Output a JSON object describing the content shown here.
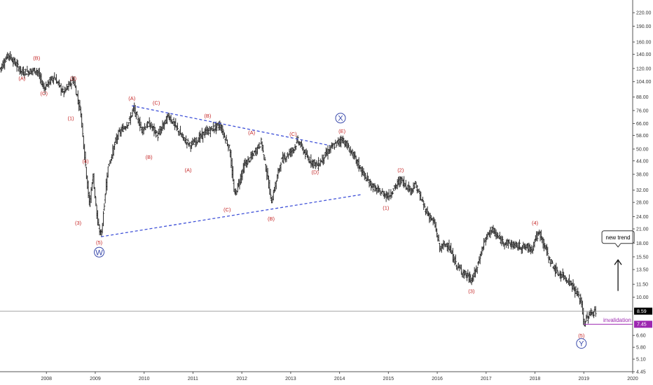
{
  "chart_data": {
    "type": "ohlc",
    "title": "",
    "xlabel": "",
    "ylabel": "",
    "y_scale": "log",
    "ylim": [
      4.45,
      245
    ],
    "xlim": [
      2007.05,
      2020.0
    ],
    "x_ticks": [
      "2008",
      "2009",
      "2010",
      "2011",
      "2012",
      "2013",
      "2014",
      "2015",
      "2016",
      "2017",
      "2018",
      "2019",
      "2020"
    ],
    "y_ticks": [
      "220.00",
      "190.00",
      "160.00",
      "140.00",
      "120.00",
      "104.00",
      "88.00",
      "76.00",
      "66.00",
      "58.00",
      "50.00",
      "44.00",
      "38.00",
      "32.00",
      "28.00",
      "24.00",
      "21.00",
      "18.00",
      "15.50",
      "13.50",
      "11.50",
      "10.00",
      "8.80",
      "7.45",
      "6.60",
      "5.80",
      "5.10",
      "4.45"
    ],
    "grid": false,
    "price_path": [
      {
        "x": 2007.05,
        "y": 120
      },
      {
        "x": 2007.22,
        "y": 140
      },
      {
        "x": 2007.5,
        "y": 115
      },
      {
        "x": 2007.8,
        "y": 118
      },
      {
        "x": 2007.95,
        "y": 97
      },
      {
        "x": 2008.15,
        "y": 110
      },
      {
        "x": 2008.35,
        "y": 92
      },
      {
        "x": 2008.55,
        "y": 107
      },
      {
        "x": 2008.7,
        "y": 75
      },
      {
        "x": 2008.8,
        "y": 42
      },
      {
        "x": 2008.88,
        "y": 27
      },
      {
        "x": 2008.95,
        "y": 38
      },
      {
        "x": 2009.05,
        "y": 22
      },
      {
        "x": 2009.12,
        "y": 19.5
      },
      {
        "x": 2009.25,
        "y": 40
      },
      {
        "x": 2009.45,
        "y": 58
      },
      {
        "x": 2009.7,
        "y": 68
      },
      {
        "x": 2009.78,
        "y": 78
      },
      {
        "x": 2009.95,
        "y": 62
      },
      {
        "x": 2010.1,
        "y": 66
      },
      {
        "x": 2010.28,
        "y": 58
      },
      {
        "x": 2010.5,
        "y": 72
      },
      {
        "x": 2010.8,
        "y": 56
      },
      {
        "x": 2010.95,
        "y": 52
      },
      {
        "x": 2011.25,
        "y": 60
      },
      {
        "x": 2011.55,
        "y": 65
      },
      {
        "x": 2011.75,
        "y": 50
      },
      {
        "x": 2011.85,
        "y": 30
      },
      {
        "x": 2012.05,
        "y": 42
      },
      {
        "x": 2012.2,
        "y": 46
      },
      {
        "x": 2012.4,
        "y": 54
      },
      {
        "x": 2012.55,
        "y": 34
      },
      {
        "x": 2012.6,
        "y": 28
      },
      {
        "x": 2012.8,
        "y": 44
      },
      {
        "x": 2013.05,
        "y": 50
      },
      {
        "x": 2013.15,
        "y": 55
      },
      {
        "x": 2013.35,
        "y": 45
      },
      {
        "x": 2013.55,
        "y": 42
      },
      {
        "x": 2013.8,
        "y": 50
      },
      {
        "x": 2014.05,
        "y": 56
      },
      {
        "x": 2014.25,
        "y": 48
      },
      {
        "x": 2014.55,
        "y": 36
      },
      {
        "x": 2014.75,
        "y": 32
      },
      {
        "x": 2015.0,
        "y": 30
      },
      {
        "x": 2015.25,
        "y": 36
      },
      {
        "x": 2015.45,
        "y": 32
      },
      {
        "x": 2015.55,
        "y": 34
      },
      {
        "x": 2015.75,
        "y": 26
      },
      {
        "x": 2015.95,
        "y": 22
      },
      {
        "x": 2016.05,
        "y": 17
      },
      {
        "x": 2016.2,
        "y": 18
      },
      {
        "x": 2016.4,
        "y": 14
      },
      {
        "x": 2016.7,
        "y": 12
      },
      {
        "x": 2016.8,
        "y": 13.5
      },
      {
        "x": 2016.95,
        "y": 18
      },
      {
        "x": 2017.1,
        "y": 21
      },
      {
        "x": 2017.3,
        "y": 18.5
      },
      {
        "x": 2017.6,
        "y": 17.5
      },
      {
        "x": 2017.95,
        "y": 17
      },
      {
        "x": 2018.0,
        "y": 19
      },
      {
        "x": 2018.1,
        "y": 20
      },
      {
        "x": 2018.3,
        "y": 15
      },
      {
        "x": 2018.45,
        "y": 13
      },
      {
        "x": 2018.6,
        "y": 12.5
      },
      {
        "x": 2018.75,
        "y": 11.5
      },
      {
        "x": 2018.95,
        "y": 9.5
      },
      {
        "x": 2019.0,
        "y": 7.45
      },
      {
        "x": 2019.1,
        "y": 8.3
      },
      {
        "x": 2019.25,
        "y": 8.59
      }
    ],
    "wave_labels": [
      {
        "text": "(A)",
        "x": 2007.5,
        "y": 108
      },
      {
        "text": "(B)",
        "x": 2007.8,
        "y": 135
      },
      {
        "text": "(C)",
        "x": 2007.95,
        "y": 92
      },
      {
        "text": "(2)",
        "x": 2008.55,
        "y": 108
      },
      {
        "text": "(1)",
        "x": 2008.5,
        "y": 70
      },
      {
        "text": "(4)",
        "x": 2008.8,
        "y": 44
      },
      {
        "text": "(3)",
        "x": 2008.65,
        "y": 22.5
      },
      {
        "text": "(5)",
        "x": 2009.08,
        "y": 18.2
      },
      {
        "text": "(A)",
        "x": 2009.75,
        "y": 87
      },
      {
        "text": "(C)",
        "x": 2010.25,
        "y": 83
      },
      {
        "text": "(B)",
        "x": 2010.1,
        "y": 46
      },
      {
        "text": "(A)",
        "x": 2010.9,
        "y": 40
      },
      {
        "text": "(B)",
        "x": 2011.3,
        "y": 72
      },
      {
        "text": "(C)",
        "x": 2011.7,
        "y": 26
      },
      {
        "text": "(A)",
        "x": 2012.2,
        "y": 60
      },
      {
        "text": "(B)",
        "x": 2012.6,
        "y": 23.5
      },
      {
        "text": "(C)",
        "x": 2013.05,
        "y": 59
      },
      {
        "text": "(D)",
        "x": 2013.5,
        "y": 39
      },
      {
        "text": "(E)",
        "x": 2014.05,
        "y": 61
      },
      {
        "text": "(1)",
        "x": 2014.95,
        "y": 26.5
      },
      {
        "text": "(2)",
        "x": 2015.25,
        "y": 40
      },
      {
        "text": "(3)",
        "x": 2016.7,
        "y": 10.7
      },
      {
        "text": "(4)",
        "x": 2018.0,
        "y": 22.5
      },
      {
        "text": "(5)",
        "x": 2018.95,
        "y": 6.6
      }
    ],
    "major_wave_labels": [
      {
        "text": "W",
        "x": 2009.08,
        "y": 16.3
      },
      {
        "text": "X",
        "x": 2014.02,
        "y": 70
      },
      {
        "text": "Y",
        "x": 2018.95,
        "y": 6.05
      }
    ],
    "trendlines": [
      {
        "name": "triangle-upper",
        "x1": 2009.75,
        "y1": 80,
        "x2": 2013.8,
        "y2": 52
      },
      {
        "name": "triangle-lower",
        "x1": 2009.12,
        "y1": 19.3,
        "x2": 2014.45,
        "y2": 30.5
      }
    ],
    "last_price": {
      "value": 8.59,
      "label": "8.59",
      "color": "#000000"
    },
    "invalidation": {
      "value": 7.45,
      "label": "7.45",
      "text": "invalidation",
      "color": "#9c27b0",
      "x_start": 2019.0
    },
    "annotation": {
      "text": "new trend",
      "x": 2019.7,
      "y": 19.2,
      "arrow_from": 10.7,
      "arrow_to": 15.0
    }
  }
}
